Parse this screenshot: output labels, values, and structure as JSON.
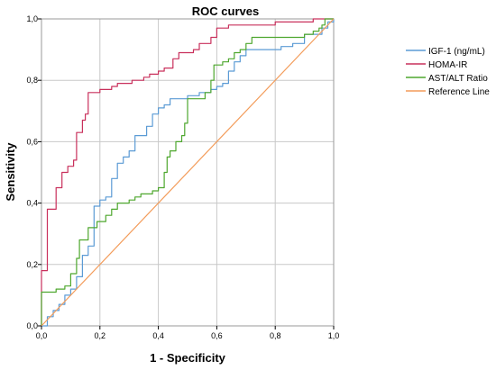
{
  "chart_data": {
    "type": "line",
    "title": "ROC curves",
    "xlabel": "1 - Specificity",
    "ylabel": "Sensitivity",
    "xlim": [
      0,
      1
    ],
    "ylim": [
      0,
      1
    ],
    "x_ticks": [
      "0,0",
      "0,2",
      "0,4",
      "0,6",
      "0,8",
      "1,0"
    ],
    "y_ticks": [
      "0,0",
      "0,2",
      "0,4",
      "0,6",
      "0,8",
      "1,0"
    ],
    "grid": true,
    "legend_position": "right",
    "series": [
      {
        "name": "IGF-1 (ng/mL)",
        "color": "#5b9bd5",
        "points": [
          [
            0,
            0
          ],
          [
            0.02,
            0
          ],
          [
            0.02,
            0.03
          ],
          [
            0.04,
            0.03
          ],
          [
            0.04,
            0.05
          ],
          [
            0.06,
            0.05
          ],
          [
            0.06,
            0.07
          ],
          [
            0.08,
            0.07
          ],
          [
            0.08,
            0.1
          ],
          [
            0.1,
            0.1
          ],
          [
            0.1,
            0.12
          ],
          [
            0.12,
            0.12
          ],
          [
            0.12,
            0.16
          ],
          [
            0.14,
            0.16
          ],
          [
            0.14,
            0.23
          ],
          [
            0.16,
            0.23
          ],
          [
            0.16,
            0.26
          ],
          [
            0.18,
            0.26
          ],
          [
            0.18,
            0.39
          ],
          [
            0.2,
            0.39
          ],
          [
            0.2,
            0.41
          ],
          [
            0.22,
            0.41
          ],
          [
            0.22,
            0.42
          ],
          [
            0.24,
            0.42
          ],
          [
            0.24,
            0.48
          ],
          [
            0.26,
            0.48
          ],
          [
            0.26,
            0.53
          ],
          [
            0.28,
            0.53
          ],
          [
            0.28,
            0.55
          ],
          [
            0.3,
            0.55
          ],
          [
            0.3,
            0.57
          ],
          [
            0.32,
            0.57
          ],
          [
            0.32,
            0.62
          ],
          [
            0.36,
            0.62
          ],
          [
            0.36,
            0.65
          ],
          [
            0.38,
            0.65
          ],
          [
            0.38,
            0.69
          ],
          [
            0.4,
            0.69
          ],
          [
            0.4,
            0.71
          ],
          [
            0.42,
            0.71
          ],
          [
            0.42,
            0.72
          ],
          [
            0.44,
            0.72
          ],
          [
            0.44,
            0.74
          ],
          [
            0.5,
            0.74
          ],
          [
            0.5,
            0.75
          ],
          [
            0.54,
            0.75
          ],
          [
            0.54,
            0.76
          ],
          [
            0.58,
            0.76
          ],
          [
            0.58,
            0.77
          ],
          [
            0.6,
            0.77
          ],
          [
            0.6,
            0.78
          ],
          [
            0.62,
            0.78
          ],
          [
            0.62,
            0.79
          ],
          [
            0.64,
            0.79
          ],
          [
            0.64,
            0.83
          ],
          [
            0.66,
            0.83
          ],
          [
            0.66,
            0.86
          ],
          [
            0.68,
            0.86
          ],
          [
            0.68,
            0.88
          ],
          [
            0.7,
            0.88
          ],
          [
            0.7,
            0.9
          ],
          [
            0.82,
            0.9
          ],
          [
            0.82,
            0.91
          ],
          [
            0.86,
            0.91
          ],
          [
            0.86,
            0.92
          ],
          [
            0.9,
            0.92
          ],
          [
            0.9,
            0.95
          ],
          [
            0.96,
            0.95
          ],
          [
            0.96,
            0.97
          ],
          [
            0.98,
            0.97
          ],
          [
            0.98,
            0.99
          ],
          [
            1,
            0.99
          ],
          [
            1,
            1
          ]
        ]
      },
      {
        "name": "HOMA-IR",
        "color": "#c9305c",
        "points": [
          [
            0,
            0
          ],
          [
            0,
            0.18
          ],
          [
            0.02,
            0.18
          ],
          [
            0.02,
            0.38
          ],
          [
            0.05,
            0.38
          ],
          [
            0.05,
            0.45
          ],
          [
            0.07,
            0.45
          ],
          [
            0.07,
            0.5
          ],
          [
            0.09,
            0.5
          ],
          [
            0.09,
            0.52
          ],
          [
            0.11,
            0.52
          ],
          [
            0.11,
            0.54
          ],
          [
            0.12,
            0.54
          ],
          [
            0.12,
            0.63
          ],
          [
            0.14,
            0.63
          ],
          [
            0.14,
            0.67
          ],
          [
            0.15,
            0.67
          ],
          [
            0.15,
            0.69
          ],
          [
            0.16,
            0.69
          ],
          [
            0.16,
            0.76
          ],
          [
            0.2,
            0.76
          ],
          [
            0.2,
            0.77
          ],
          [
            0.24,
            0.77
          ],
          [
            0.24,
            0.78
          ],
          [
            0.26,
            0.78
          ],
          [
            0.26,
            0.79
          ],
          [
            0.31,
            0.79
          ],
          [
            0.31,
            0.8
          ],
          [
            0.35,
            0.8
          ],
          [
            0.35,
            0.81
          ],
          [
            0.37,
            0.81
          ],
          [
            0.37,
            0.82
          ],
          [
            0.4,
            0.82
          ],
          [
            0.4,
            0.83
          ],
          [
            0.42,
            0.83
          ],
          [
            0.42,
            0.84
          ],
          [
            0.45,
            0.84
          ],
          [
            0.45,
            0.87
          ],
          [
            0.47,
            0.87
          ],
          [
            0.47,
            0.89
          ],
          [
            0.52,
            0.89
          ],
          [
            0.52,
            0.9
          ],
          [
            0.54,
            0.9
          ],
          [
            0.54,
            0.92
          ],
          [
            0.58,
            0.92
          ],
          [
            0.58,
            0.94
          ],
          [
            0.6,
            0.94
          ],
          [
            0.6,
            0.97
          ],
          [
            0.64,
            0.97
          ],
          [
            0.64,
            0.98
          ],
          [
            0.8,
            0.98
          ],
          [
            0.8,
            0.99
          ],
          [
            0.93,
            0.99
          ],
          [
            0.93,
            1
          ],
          [
            1,
            1
          ]
        ]
      },
      {
        "name": "AST/ALT Ratio",
        "color": "#4ea72e",
        "points": [
          [
            0,
            0
          ],
          [
            0,
            0.11
          ],
          [
            0.05,
            0.11
          ],
          [
            0.05,
            0.12
          ],
          [
            0.08,
            0.12
          ],
          [
            0.08,
            0.13
          ],
          [
            0.1,
            0.13
          ],
          [
            0.1,
            0.17
          ],
          [
            0.12,
            0.17
          ],
          [
            0.12,
            0.22
          ],
          [
            0.13,
            0.22
          ],
          [
            0.13,
            0.28
          ],
          [
            0.16,
            0.28
          ],
          [
            0.16,
            0.32
          ],
          [
            0.19,
            0.32
          ],
          [
            0.19,
            0.34
          ],
          [
            0.22,
            0.34
          ],
          [
            0.22,
            0.36
          ],
          [
            0.24,
            0.36
          ],
          [
            0.24,
            0.38
          ],
          [
            0.26,
            0.38
          ],
          [
            0.26,
            0.4
          ],
          [
            0.3,
            0.4
          ],
          [
            0.3,
            0.41
          ],
          [
            0.32,
            0.41
          ],
          [
            0.32,
            0.42
          ],
          [
            0.34,
            0.42
          ],
          [
            0.34,
            0.43
          ],
          [
            0.38,
            0.43
          ],
          [
            0.38,
            0.44
          ],
          [
            0.4,
            0.44
          ],
          [
            0.4,
            0.45
          ],
          [
            0.42,
            0.45
          ],
          [
            0.42,
            0.5
          ],
          [
            0.43,
            0.5
          ],
          [
            0.43,
            0.55
          ],
          [
            0.44,
            0.55
          ],
          [
            0.44,
            0.57
          ],
          [
            0.46,
            0.57
          ],
          [
            0.46,
            0.6
          ],
          [
            0.48,
            0.6
          ],
          [
            0.48,
            0.62
          ],
          [
            0.49,
            0.62
          ],
          [
            0.49,
            0.66
          ],
          [
            0.5,
            0.66
          ],
          [
            0.5,
            0.74
          ],
          [
            0.56,
            0.74
          ],
          [
            0.56,
            0.76
          ],
          [
            0.58,
            0.76
          ],
          [
            0.58,
            0.8
          ],
          [
            0.59,
            0.8
          ],
          [
            0.59,
            0.85
          ],
          [
            0.62,
            0.85
          ],
          [
            0.62,
            0.86
          ],
          [
            0.64,
            0.86
          ],
          [
            0.64,
            0.87
          ],
          [
            0.66,
            0.87
          ],
          [
            0.66,
            0.89
          ],
          [
            0.68,
            0.89
          ],
          [
            0.68,
            0.9
          ],
          [
            0.7,
            0.9
          ],
          [
            0.7,
            0.92
          ],
          [
            0.72,
            0.92
          ],
          [
            0.72,
            0.94
          ],
          [
            0.9,
            0.94
          ],
          [
            0.9,
            0.95
          ],
          [
            0.93,
            0.95
          ],
          [
            0.93,
            0.96
          ],
          [
            0.95,
            0.96
          ],
          [
            0.95,
            0.97
          ],
          [
            0.96,
            0.97
          ],
          [
            0.96,
            0.98
          ],
          [
            0.97,
            0.98
          ],
          [
            0.97,
            1
          ],
          [
            1,
            1
          ]
        ]
      },
      {
        "name": "Reference Line",
        "color": "#f39c5a",
        "points": [
          [
            0,
            0
          ],
          [
            1,
            1
          ]
        ]
      }
    ]
  }
}
